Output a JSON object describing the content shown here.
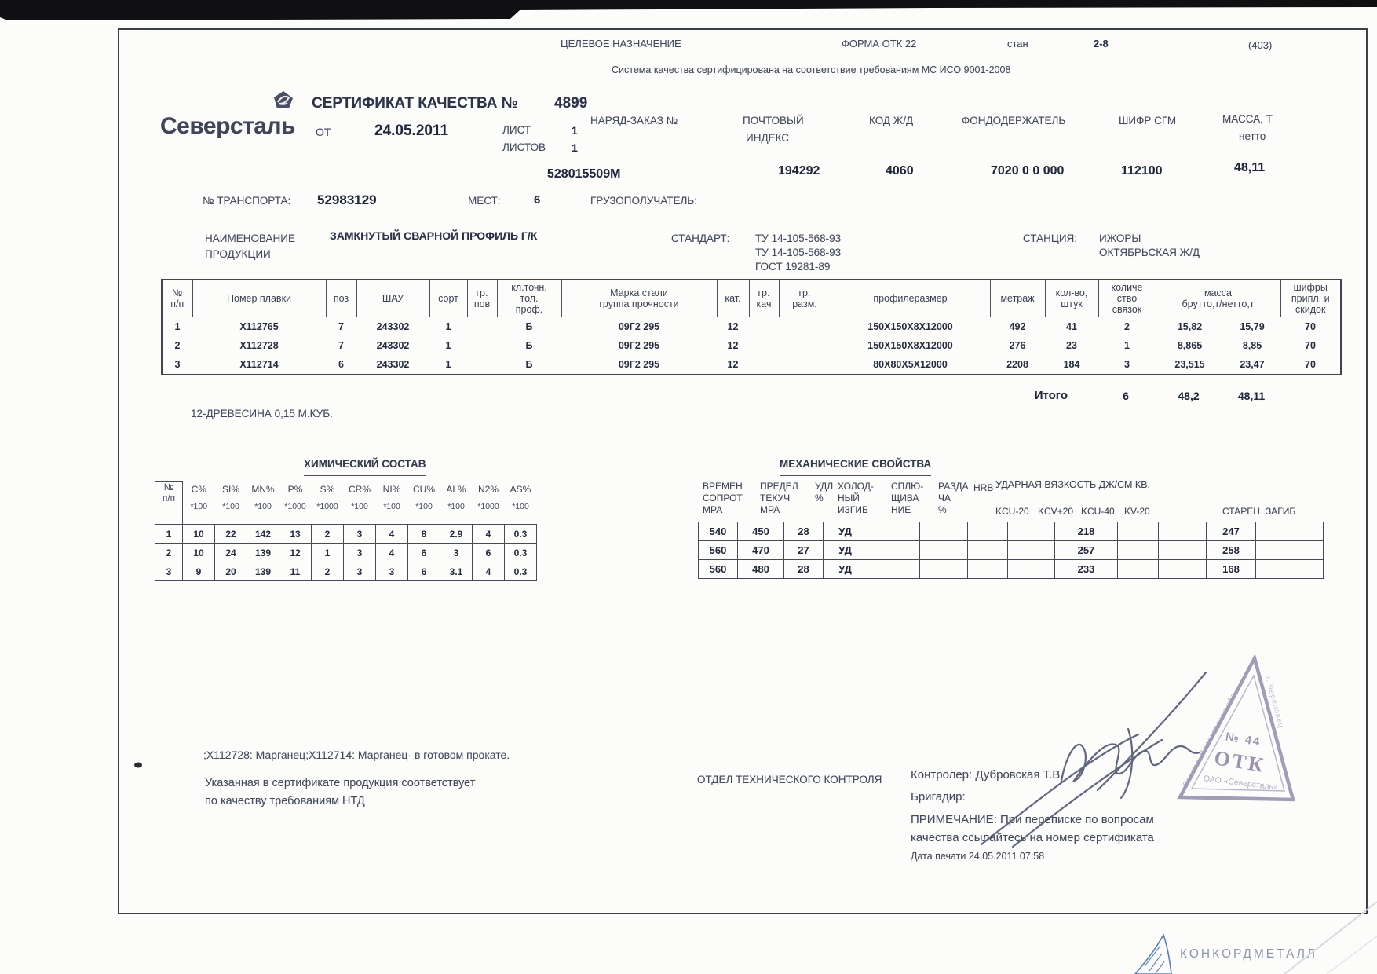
{
  "top_bar": {
    "purpose": "ЦЕЛЕВОЕ НАЗНАЧЕНИЕ",
    "form": "ФОРМА ОТК 22",
    "mill_label": "стан",
    "mill_value": "2-8",
    "code": "(403)",
    "iso_note": "Система качества сертифицирована на соответствие требованиям МС ИСО 9001-2008"
  },
  "header": {
    "brand": "Северсталь",
    "title": "СЕРТИФИКАТ КАЧЕСТВА №",
    "number": "4899",
    "from_label": "ОТ",
    "date": "24.05.2011",
    "sheet_label": "ЛИСТ",
    "sheet_value": "1",
    "sheets_label": "ЛИСТОВ",
    "sheets_value": "1",
    "order_label": "НАРЯД-ЗАКАЗ №",
    "order_value": "528015509М",
    "postal_label1": "ПОЧТОВЫЙ",
    "postal_label2": "ИНДЕКС",
    "postal_value": "194292",
    "rail_label": "КОД Ж/Д",
    "rail_value": "4060",
    "holder_label": "ФОНДОДЕРЖАТЕЛЬ",
    "holder_value": "7020 0 0 000",
    "sgm_label": "ШИФР СГМ",
    "sgm_value": "112100",
    "mass_label": "МАССА, Т",
    "mass_sub": "нетто",
    "mass_value": "48,11",
    "transport_label": "№ ТРАНСПОРТА:",
    "transport_value": "52983129",
    "places_label": "МЕСТ:",
    "places_value": "6",
    "consignee_label": "ГРУЗОПОЛУЧАТЕЛЬ:"
  },
  "product": {
    "name_label1": "НАИМЕНОВАНИЕ",
    "name_label2": "ПРОДУКЦИИ",
    "name_value": "ЗАМКНУТЫЙ СВАРНОЙ ПРОФИЛЬ Г/К",
    "standard_label": "СТАНДАРТ:",
    "standards": [
      "ТУ 14-105-568-93",
      "ТУ 14-105-568-93",
      "ГОСТ 19281-89"
    ],
    "station_label": "СТАНЦИЯ:",
    "station_value1": "ИЖОРЫ",
    "station_value2": "ОКТЯБРЬСКАЯ Ж/Д"
  },
  "main_table": {
    "headers": [
      "№\nп/п",
      "Номер плавки",
      "поз",
      "ШАУ",
      "сорт",
      "гр.\nпов",
      "кл.точн.\nтол.\nпроф.",
      "Марка стали\nгруппа прочности",
      "кат.",
      "гр.\nкач",
      "гр.\nразм.",
      "профилеразмер",
      "метраж",
      "кол-во,\nштук",
      "количе\nство\nсвязок",
      "масса\nбрутто,т/нетто,т",
      "шифры\nприпл. и\nскидок"
    ],
    "rows": [
      [
        "1",
        "X112765",
        "7",
        "243302",
        "1",
        "",
        "Б",
        "09Г2 295",
        "12",
        "",
        "",
        "150X150X8X12000",
        "492",
        "41",
        "2",
        "15,82",
        "15,79",
        "70"
      ],
      [
        "2",
        "X112728",
        "7",
        "243302",
        "1",
        "",
        "Б",
        "09Г2 295",
        "12",
        "",
        "",
        "150X150X8X12000",
        "276",
        "23",
        "1",
        "8,865",
        "8,85",
        "70"
      ],
      [
        "3",
        "X112714",
        "6",
        "243302",
        "1",
        "",
        "Б",
        "09Г2 295",
        "12",
        "",
        "",
        "80X80X5X12000",
        "2208",
        "184",
        "3",
        "23,515",
        "23,47",
        "70"
      ]
    ],
    "total_label": "Итого",
    "total_bundles": "6",
    "total_gross": "48,2",
    "total_net": "48,11",
    "note": "12-ДРЕВЕСИНА 0,15 М.КУБ."
  },
  "chemical": {
    "title": "ХИМИЧЕСКИЙ СОСТАВ",
    "row_header": "№\nп/п",
    "columns": [
      {
        "name": "C%",
        "mult": "*100"
      },
      {
        "name": "SI%",
        "mult": "*100"
      },
      {
        "name": "MN%",
        "mult": "*100"
      },
      {
        "name": "P%",
        "mult": "*1000"
      },
      {
        "name": "S%",
        "mult": "*1000"
      },
      {
        "name": "CR%",
        "mult": "*100"
      },
      {
        "name": "NI%",
        "mult": "*100"
      },
      {
        "name": "CU%",
        "mult": "*100"
      },
      {
        "name": "AL%",
        "mult": "*100"
      },
      {
        "name": "N2%",
        "mult": "*1000"
      },
      {
        "name": "AS%",
        "mult": "*100"
      }
    ],
    "rows": [
      [
        "1",
        "10",
        "22",
        "142",
        "13",
        "2",
        "3",
        "4",
        "8",
        "2.9",
        "4",
        "0.3"
      ],
      [
        "2",
        "10",
        "24",
        "139",
        "12",
        "1",
        "3",
        "4",
        "6",
        "3",
        "6",
        "0.3"
      ],
      [
        "3",
        "9",
        "20",
        "139",
        "11",
        "2",
        "3",
        "3",
        "6",
        "3.1",
        "4",
        "0.3"
      ]
    ]
  },
  "mechanical": {
    "title": "МЕХАНИЧЕСКИЕ СВОЙСТВА",
    "col_labels": [
      "ВРЕМЕН\nСОПРОТ\nМРА",
      "ПРЕДЕЛ\nТЕКУЧ\nМРА",
      "УДЛ\n%",
      "ХОЛОД-\nНЫЙ\nИЗГИБ",
      "СПЛЮ-\nЩИВА\nНИЕ",
      "РАЗДА\nЧА\n%",
      "HRB"
    ],
    "impact_title": "УДАРНАЯ ВЯЗКОСТЬ ДЖ/СМ КВ.",
    "impact_cols": [
      "KCU-20",
      "KCV+20",
      "KCU-40",
      "KV-20"
    ],
    "aging_label": "СТАРЕН",
    "bend_label": "ЗАГИБ",
    "rows": [
      [
        "540",
        "450",
        "28",
        "УД",
        "",
        "",
        "",
        "",
        "218",
        "",
        "",
        "247",
        ""
      ],
      [
        "560",
        "470",
        "27",
        "УД",
        "",
        "",
        "",
        "",
        "257",
        "",
        "",
        "258",
        ""
      ],
      [
        "560",
        "480",
        "28",
        "УД",
        "",
        "",
        "",
        "",
        "233",
        "",
        "",
        "168",
        ""
      ]
    ]
  },
  "footer": {
    "note1": ";X112728: Марганец;X112714: Марганец- в готовом прокате.",
    "conform1": "Указанная в сертификате продукция соответствует",
    "conform2": "по качеству требованиям НТД",
    "dept": "ОТДЕЛ ТЕХНИЧЕСКОГО КОНТРОЛЯ",
    "controller": "Контролер: Дубровская Т.В.",
    "foreman": "Бригадир:",
    "remark1": "ПРИМЕЧАНИЕ: При переписке по вопросам",
    "remark2": "качества ссылайтесь на номер сертификата",
    "print_date": "Дата печати 24.05.2011 07:58"
  },
  "stamp": {
    "number": "№ 44",
    "org_short": "ОТК",
    "org": "ОАО «Северсталь»",
    "edge_left": "Россия, Вологодская обл.",
    "edge_right": "г. Череповец"
  },
  "watermark": {
    "name": "КОНКОРДМЕТАЛЛ"
  },
  "colors": {
    "stamp": "#8f87a8",
    "signature": "#454d68",
    "logo_blue": "#5b7fb5"
  }
}
